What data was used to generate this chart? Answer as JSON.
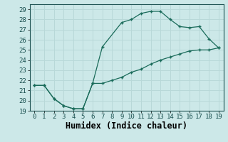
{
  "xlabel": "Humidex (Indice chaleur)",
  "bg_color": "#cce8e8",
  "grid_color": "#b8d8d8",
  "line_color": "#1a6b5a",
  "xlim": [
    -0.5,
    19.5
  ],
  "ylim": [
    19,
    29.5
  ],
  "xticks": [
    0,
    1,
    2,
    3,
    4,
    5,
    6,
    7,
    8,
    9,
    10,
    11,
    12,
    13,
    14,
    15,
    16,
    17,
    18,
    19
  ],
  "yticks": [
    19,
    20,
    21,
    22,
    23,
    24,
    25,
    26,
    27,
    28,
    29
  ],
  "upper_x": [
    0,
    1,
    2,
    3,
    4,
    5,
    6,
    7,
    9,
    10,
    11,
    12,
    13,
    14,
    15,
    16,
    17,
    18,
    19
  ],
  "upper_y": [
    21.5,
    21.5,
    20.2,
    19.5,
    19.2,
    19.2,
    21.7,
    25.3,
    27.7,
    28.0,
    28.6,
    28.8,
    28.8,
    28.0,
    27.3,
    27.2,
    27.3,
    26.1,
    25.2
  ],
  "lower_x": [
    0,
    1,
    2,
    3,
    4,
    5,
    6,
    7,
    8,
    9,
    10,
    11,
    12,
    13,
    14,
    15,
    16,
    17,
    18,
    19
  ],
  "lower_y": [
    21.5,
    21.5,
    20.2,
    19.5,
    19.2,
    19.2,
    21.7,
    21.7,
    22.0,
    22.3,
    22.8,
    23.1,
    23.6,
    24.0,
    24.3,
    24.6,
    24.9,
    25.0,
    25.0,
    25.2
  ],
  "font_family": "monospace",
  "tick_fontsize": 6.5,
  "label_fontsize": 8.5
}
